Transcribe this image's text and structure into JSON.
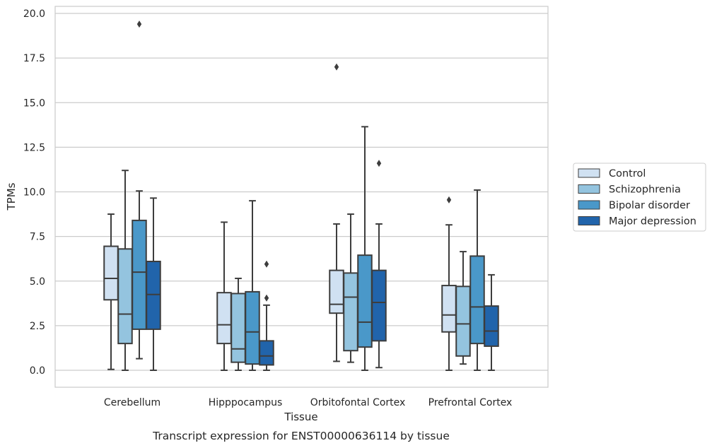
{
  "caption": "Transcript expression for ENST00000636114 by tissue",
  "chart_data": {
    "type": "boxplot",
    "xlabel": "Tissue",
    "ylabel": "TPMs",
    "ylim": [
      -0.9,
      20.4
    ],
    "yticks": [
      0,
      2.5,
      5,
      7.5,
      10,
      12.5,
      15,
      17.5,
      20
    ],
    "ytick_labels": [
      "0.0",
      "2.5",
      "5.0",
      "7.5",
      "10.0",
      "12.5",
      "15.0",
      "17.5",
      "20.0"
    ],
    "grid": "horizontal",
    "legend_position": "right",
    "categories": [
      "Cerebellum",
      "Hipppocampus",
      "Orbitofontal Cortex",
      "Prefrontal Cortex"
    ],
    "series": [
      {
        "name": "Control",
        "color": "#d0e1f2",
        "boxes": [
          {
            "whisker_low": 0.05,
            "q1": 3.95,
            "median": 5.15,
            "q3": 6.95,
            "whisker_high": 8.75,
            "outliers": []
          },
          {
            "whisker_low": 0.0,
            "q1": 1.5,
            "median": 2.55,
            "q3": 4.35,
            "whisker_high": 8.3,
            "outliers": []
          },
          {
            "whisker_low": 0.5,
            "q1": 3.2,
            "median": 3.7,
            "q3": 5.6,
            "whisker_high": 8.2,
            "outliers": [
              17.0
            ]
          },
          {
            "whisker_low": 0.0,
            "q1": 2.15,
            "median": 3.1,
            "q3": 4.75,
            "whisker_high": 8.15,
            "outliers": [
              9.55
            ]
          }
        ]
      },
      {
        "name": "Schizophrenia",
        "color": "#94c4df",
        "boxes": [
          {
            "whisker_low": 0.0,
            "q1": 1.5,
            "median": 3.15,
            "q3": 6.8,
            "whisker_high": 11.2,
            "outliers": []
          },
          {
            "whisker_low": 0.0,
            "q1": 0.45,
            "median": 1.2,
            "q3": 4.3,
            "whisker_high": 5.15,
            "outliers": []
          },
          {
            "whisker_low": 0.45,
            "q1": 1.1,
            "median": 4.1,
            "q3": 5.45,
            "whisker_high": 8.75,
            "outliers": []
          },
          {
            "whisker_low": 0.35,
            "q1": 0.8,
            "median": 2.6,
            "q3": 4.7,
            "whisker_high": 6.65,
            "outliers": []
          }
        ]
      },
      {
        "name": "Bipolar disorder",
        "color": "#4a98c9",
        "boxes": [
          {
            "whisker_low": 0.65,
            "q1": 2.3,
            "median": 5.5,
            "q3": 8.4,
            "whisker_high": 10.05,
            "outliers": [
              19.4
            ]
          },
          {
            "whisker_low": 0.0,
            "q1": 0.35,
            "median": 2.15,
            "q3": 4.4,
            "whisker_high": 9.5,
            "outliers": []
          },
          {
            "whisker_low": 0.0,
            "q1": 1.3,
            "median": 2.7,
            "q3": 6.45,
            "whisker_high": 13.65,
            "outliers": []
          },
          {
            "whisker_low": 0.0,
            "q1": 1.5,
            "median": 3.55,
            "q3": 6.4,
            "whisker_high": 10.1,
            "outliers": []
          }
        ]
      },
      {
        "name": "Major depression",
        "color": "#2164ab",
        "boxes": [
          {
            "whisker_low": 0.0,
            "q1": 2.3,
            "median": 4.25,
            "q3": 6.1,
            "whisker_high": 9.65,
            "outliers": []
          },
          {
            "whisker_low": 0.0,
            "q1": 0.3,
            "median": 0.8,
            "q3": 1.65,
            "whisker_high": 3.65,
            "outliers": [
              5.95,
              4.05
            ]
          },
          {
            "whisker_low": 0.15,
            "q1": 1.65,
            "median": 3.8,
            "q3": 5.6,
            "whisker_high": 8.2,
            "outliers": [
              11.6
            ]
          },
          {
            "whisker_low": 0.0,
            "q1": 1.35,
            "median": 2.2,
            "q3": 3.6,
            "whisker_high": 5.35,
            "outliers": []
          }
        ]
      }
    ]
  }
}
